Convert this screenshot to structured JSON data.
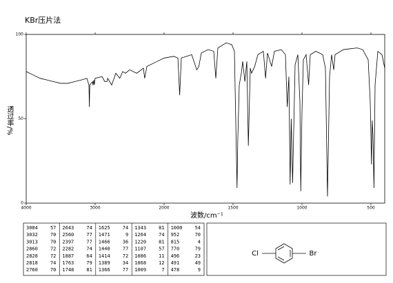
{
  "title": "KBr压片法",
  "chart_data": {
    "type": "line",
    "ylabel": "透过率/%",
    "xlabel": "波数/cm⁻¹",
    "xlim": [
      4000,
      400
    ],
    "ylim": [
      0,
      100
    ],
    "xticks": [
      4000,
      3000,
      2000,
      1500,
      1000,
      500
    ],
    "yticks": [
      0,
      50,
      100
    ],
    "series": [
      {
        "color": "#000000",
        "x": [
          4000,
          3900,
          3800,
          3700,
          3600,
          3500,
          3400,
          3300,
          3200,
          3120,
          3090,
          3084,
          3078,
          3040,
          3032,
          3020,
          3013,
          3000,
          2900,
          2860,
          2828,
          2818,
          2760,
          2700,
          2643,
          2600,
          2560,
          2500,
          2397,
          2300,
          2282,
          2250,
          2100,
          2000,
          1930,
          1900,
          1887,
          1875,
          1800,
          1763,
          1748,
          1730,
          1680,
          1640,
          1625,
          1610,
          1550,
          1510,
          1490,
          1471,
          1466,
          1455,
          1440,
          1430,
          1414,
          1400,
          1389,
          1375,
          1366,
          1343,
          1320,
          1280,
          1264,
          1250,
          1220,
          1200,
          1150,
          1120,
          1107,
          1095,
          1086,
          1078,
          1068,
          1050,
          1030,
          1015,
          1009,
          1000,
          990,
          970,
          952,
          940,
          900,
          850,
          830,
          815,
          800,
          785,
          770,
          760,
          700,
          600,
          560,
          520,
          505,
          496,
          491,
          485,
          478,
          470,
          450,
          420,
          400
        ],
        "values": [
          78,
          76,
          74,
          73,
          72,
          71,
          71,
          72,
          73,
          74,
          70,
          57,
          70,
          72,
          70,
          73,
          70,
          74,
          75,
          72,
          72,
          74,
          70,
          77,
          74,
          78,
          77,
          79,
          77,
          80,
          74,
          81,
          84,
          86,
          87,
          86,
          64,
          86,
          88,
          79,
          81,
          89,
          91,
          90,
          74,
          92,
          95,
          94,
          90,
          9,
          36,
          70,
          77,
          84,
          72,
          84,
          34,
          80,
          77,
          81,
          88,
          90,
          74,
          89,
          81,
          90,
          91,
          88,
          57,
          75,
          11,
          50,
          12,
          82,
          88,
          60,
          7,
          54,
          85,
          88,
          70,
          88,
          90,
          88,
          80,
          4,
          75,
          88,
          79,
          88,
          91,
          92,
          91,
          85,
          60,
          23,
          49,
          40,
          9,
          70,
          90,
          88,
          80
        ]
      }
    ]
  },
  "table": {
    "columns": [
      [
        [
          3084,
          57
        ],
        [
          3032,
          70
        ],
        [
          3013,
          70
        ],
        [
          2860,
          72
        ],
        [
          2828,
          72
        ],
        [
          2818,
          74
        ],
        [
          2760,
          70
        ]
      ],
      [
        [
          2643,
          74
        ],
        [
          2560,
          77
        ],
        [
          2397,
          77
        ],
        [
          2282,
          74
        ],
        [
          1887,
          64
        ],
        [
          1763,
          79
        ],
        [
          1748,
          81
        ]
      ],
      [
        [
          1625,
          74
        ],
        [
          1471,
          9
        ],
        [
          1466,
          36
        ],
        [
          1440,
          77
        ],
        [
          1414,
          72
        ],
        [
          1389,
          34
        ],
        [
          1366,
          77
        ]
      ],
      [
        [
          1343,
          81
        ],
        [
          1264,
          74
        ],
        [
          1220,
          81
        ],
        [
          1107,
          57
        ],
        [
          1086,
          11
        ],
        [
          1068,
          12
        ],
        [
          1009,
          7
        ]
      ],
      [
        [
          1000,
          54
        ],
        [
          952,
          70
        ],
        [
          815,
          4
        ],
        [
          770,
          79
        ],
        [
          496,
          23
        ],
        [
          491,
          49
        ],
        [
          478,
          9
        ]
      ]
    ]
  },
  "structure": {
    "left": "Cl",
    "right": "Br"
  }
}
